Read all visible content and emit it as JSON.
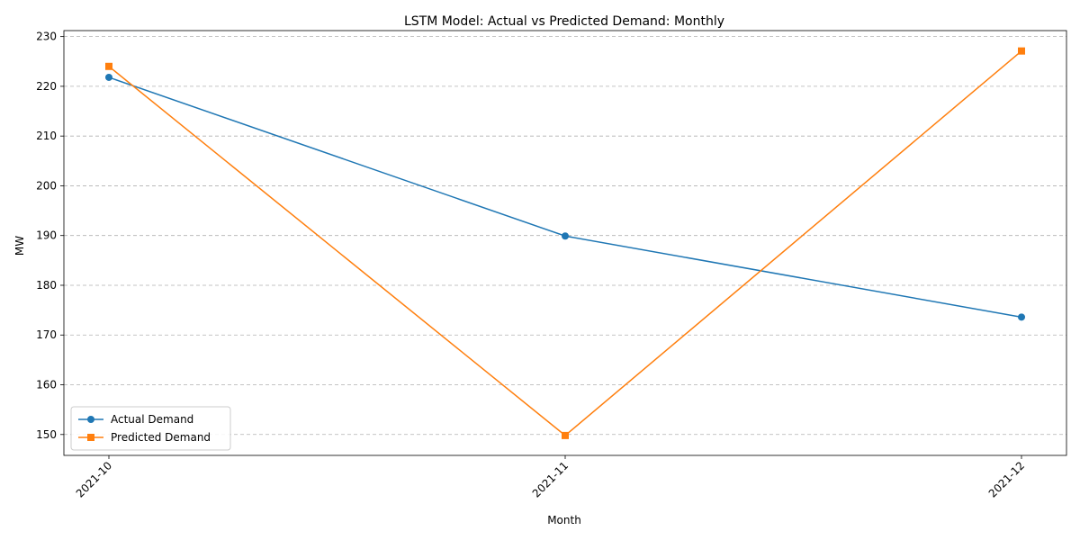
{
  "chart_data": {
    "type": "line",
    "title": "LSTM Model: Actual vs Predicted Demand: Monthly",
    "xlabel": "Month",
    "ylabel": "MW",
    "categories": [
      "2021-10",
      "2021-11",
      "2021-12"
    ],
    "series": [
      {
        "name": "Actual Demand",
        "values": [
          221.8,
          189.9,
          173.6
        ],
        "color": "#1f77b4",
        "marker": "circle"
      },
      {
        "name": "Predicted Demand",
        "values": [
          224.0,
          149.8,
          227.1
        ],
        "color": "#ff7f0e",
        "marker": "square"
      }
    ],
    "ylim": [
      145.8,
      231.2
    ],
    "yticks": [
      150,
      160,
      170,
      180,
      190,
      200,
      210,
      220,
      230
    ],
    "grid": "y-dashed",
    "legend_position": "lower-left"
  }
}
